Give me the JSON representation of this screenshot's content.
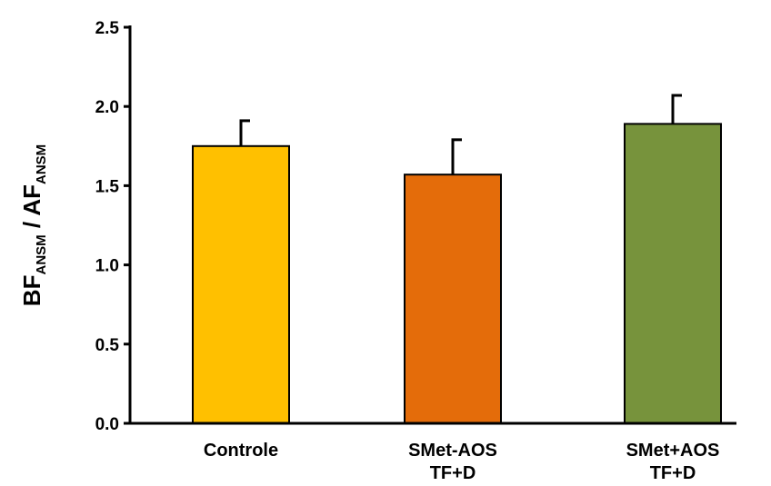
{
  "chart_data": {
    "type": "bar",
    "categories": [
      [
        "Controle"
      ],
      [
        "SMet-AOS",
        "TF+D"
      ],
      [
        "SMet+AOS",
        "TF+D"
      ]
    ],
    "values": [
      1.75,
      1.57,
      1.89
    ],
    "error_bars": [
      0.16,
      0.22,
      0.18
    ],
    "colors": [
      "#FFC000",
      "#E46C0A",
      "#77933C"
    ],
    "ylabel": {
      "parts": [
        {
          "text": "BF",
          "sub": false
        },
        {
          "text": "ANSM",
          "sub": true
        },
        {
          "text": " / AF",
          "sub": false
        },
        {
          "text": "ANSM",
          "sub": true
        }
      ]
    },
    "yticks": [
      "0.0",
      "0.5",
      "1.0",
      "1.5",
      "2.0",
      "2.5"
    ],
    "ytick_values": [
      0,
      0.5,
      1.0,
      1.5,
      2.0,
      2.5
    ],
    "ylim": [
      0,
      2.5
    ],
    "grid": false
  }
}
